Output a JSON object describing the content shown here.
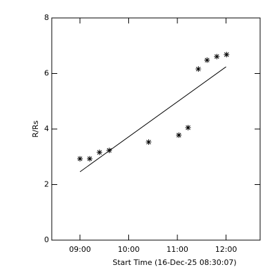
{
  "chart_data": {
    "type": "scatter",
    "xlabel": "Start Time (16-Dec-25 08:30:07)",
    "ylabel": "R/Rs",
    "xlim": [
      8.42,
      12.7
    ],
    "ylim": [
      0,
      8
    ],
    "xticks": [
      {
        "value": 9,
        "label": "09:00"
      },
      {
        "value": 10,
        "label": "10:00"
      },
      {
        "value": 11,
        "label": "11:00"
      },
      {
        "value": 12,
        "label": "12:00"
      }
    ],
    "yticks": [
      0,
      2,
      4,
      6,
      8
    ],
    "series": [
      {
        "type": "scatter",
        "marker": "asterisk",
        "color": "#000000",
        "x": [
          9.0,
          9.2,
          9.4,
          9.6,
          10.41,
          11.03,
          11.22,
          11.43,
          11.61,
          11.81,
          12.01
        ],
        "values": [
          2.93,
          2.93,
          3.16,
          3.23,
          3.53,
          3.78,
          4.05,
          6.16,
          6.48,
          6.61,
          6.68
        ]
      },
      {
        "type": "line",
        "color": "#000000",
        "x": [
          9.0,
          12.0
        ],
        "values": [
          2.46,
          6.24
        ]
      }
    ]
  }
}
